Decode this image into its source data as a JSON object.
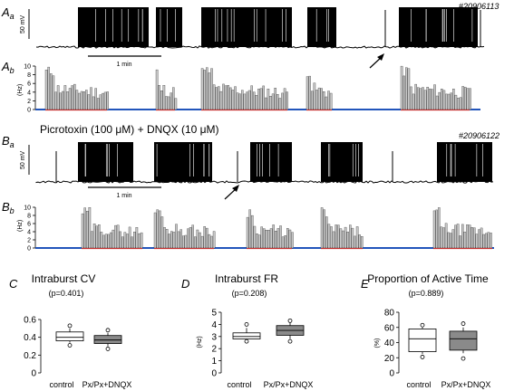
{
  "panels": {
    "Aa": {
      "letter": "A",
      "sub": "a",
      "id": "#20906113",
      "scale_label": "50 mV",
      "time_label": "1 min"
    },
    "Ab": {
      "letter": "A",
      "sub": "b",
      "ylabel": "(Hz)",
      "yticks": [
        "0",
        "2",
        "4",
        "6",
        "8",
        "10"
      ]
    },
    "Ba": {
      "letter": "B",
      "sub": "a",
      "id": "#20906122",
      "scale_label": "50 mV",
      "time_label": "1 min",
      "drug_label": "Picrotoxin (100 μM) + DNQX (10 μM)"
    },
    "Bb": {
      "letter": "B",
      "sub": "b",
      "ylabel": "(Hz)",
      "yticks": [
        "0",
        "2",
        "4",
        "6",
        "8",
        "10"
      ]
    }
  },
  "colors": {
    "trace": "#000000",
    "bar_fill": "#c8c8c8",
    "active_line": "#e03030",
    "inactive_line": "#2255bb",
    "box_control": "#ffffff",
    "box_px": "#8a8a8a"
  },
  "chart_data": [
    {
      "panel": "C",
      "type": "box",
      "title": "Intraburst CV",
      "pvalue": "(p=0.401)",
      "ylabel": "",
      "ylim": [
        0,
        0.6
      ],
      "yticks": [
        "0",
        "0.2",
        "0.4",
        "0.6"
      ],
      "categories": [
        "control",
        "Px/Px+DNQX"
      ],
      "series": [
        {
          "name": "control",
          "whisker_low": 0.34,
          "q1": 0.36,
          "median": 0.4,
          "q3": 0.46,
          "whisker_high": 0.5,
          "outliers": [
            0.31,
            0.53
          ]
        },
        {
          "name": "Px/Px+DNQX",
          "whisker_low": 0.3,
          "q1": 0.33,
          "median": 0.37,
          "q3": 0.42,
          "whisker_high": 0.45,
          "outliers": [
            0.27,
            0.48
          ]
        }
      ]
    },
    {
      "panel": "D",
      "type": "box",
      "title": "Intraburst FR",
      "pvalue": "(p=0.208)",
      "ylabel": "(Hz)",
      "ylim": [
        0,
        5
      ],
      "yticks": [
        "0",
        "1",
        "2",
        "3",
        "4",
        "5"
      ],
      "categories": [
        "control",
        "Px/Px+DNQX"
      ],
      "series": [
        {
          "name": "control",
          "whisker_low": 2.7,
          "q1": 2.8,
          "median": 3.0,
          "q3": 3.3,
          "whisker_high": 3.7,
          "outliers": [
            2.6,
            4.0
          ]
        },
        {
          "name": "Px/Px+DNQX",
          "whisker_low": 2.8,
          "q1": 3.1,
          "median": 3.5,
          "q3": 3.9,
          "whisker_high": 4.2,
          "outliers": [
            2.6,
            4.3
          ]
        }
      ]
    },
    {
      "panel": "E",
      "type": "box",
      "title": "Proportion of Active Time",
      "pvalue": "(p=0.889)",
      "ylabel": "(%)",
      "ylim": [
        0,
        80
      ],
      "yticks": [
        "0",
        "20",
        "40",
        "60",
        "80"
      ],
      "categories": [
        "control",
        "Px/Px+DNQX"
      ],
      "series": [
        {
          "name": "control",
          "whisker_low": 25,
          "q1": 28,
          "median": 45,
          "q3": 58,
          "whisker_high": 60,
          "outliers": [
            21,
            63
          ]
        },
        {
          "name": "Px/Px+DNQX",
          "whisker_low": 26,
          "q1": 30,
          "median": 45,
          "q3": 55,
          "whisker_high": 60,
          "outliers": [
            19,
            65
          ]
        }
      ]
    }
  ]
}
